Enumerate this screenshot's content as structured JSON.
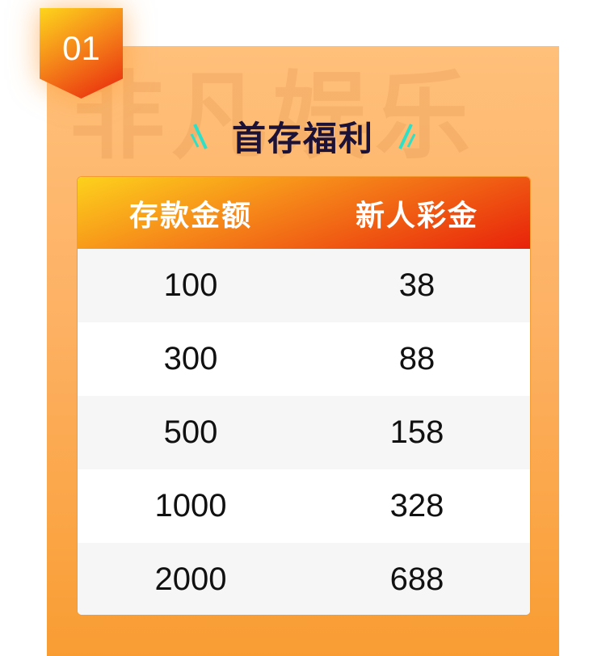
{
  "badge": {
    "number": "01"
  },
  "watermark": "非凡娱乐",
  "title": "首存福利",
  "table": {
    "headers": [
      "存款金额",
      "新人彩金"
    ],
    "rows": [
      [
        "100",
        "38"
      ],
      [
        "300",
        "88"
      ],
      [
        "500",
        "158"
      ],
      [
        "1000",
        "328"
      ],
      [
        "2000",
        "688"
      ]
    ]
  },
  "colors": {
    "accent": "#f6891a",
    "title": "#1c1238",
    "decor": "#2de0c8"
  }
}
